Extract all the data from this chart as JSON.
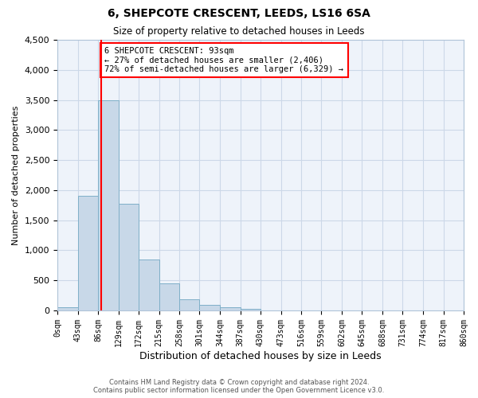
{
  "title": "6, SHEPCOTE CRESCENT, LEEDS, LS16 6SA",
  "subtitle": "Size of property relative to detached houses in Leeds",
  "xlabel": "Distribution of detached houses by size in Leeds",
  "ylabel": "Number of detached properties",
  "bar_color": "#c8d8e8",
  "bar_edgecolor": "#7fafc8",
  "bin_edges": [
    0,
    43,
    86,
    129,
    172,
    215,
    258,
    301,
    344,
    387,
    430,
    473,
    516,
    559,
    602,
    645,
    688,
    731,
    774,
    817,
    860
  ],
  "bar_heights": [
    50,
    1900,
    3500,
    1775,
    850,
    450,
    190,
    90,
    50,
    30,
    0,
    0,
    0,
    0,
    0,
    0,
    0,
    0,
    0,
    0
  ],
  "tick_labels": [
    "0sqm",
    "43sqm",
    "86sqm",
    "129sqm",
    "172sqm",
    "215sqm",
    "258sqm",
    "301sqm",
    "344sqm",
    "387sqm",
    "430sqm",
    "473sqm",
    "516sqm",
    "559sqm",
    "602sqm",
    "645sqm",
    "688sqm",
    "731sqm",
    "774sqm",
    "817sqm",
    "860sqm"
  ],
  "ylim": [
    0,
    4500
  ],
  "yticks": [
    0,
    500,
    1000,
    1500,
    2000,
    2500,
    3000,
    3500,
    4000,
    4500
  ],
  "vline_x": 93,
  "vline_color": "red",
  "annotation_title": "6 SHEPCOTE CRESCENT: 93sqm",
  "annotation_line1": "← 27% of detached houses are smaller (2,406)",
  "annotation_line2": "72% of semi-detached houses are larger (6,329) →",
  "annotation_box_color": "white",
  "annotation_box_edgecolor": "red",
  "grid_color": "#ccd8e8",
  "background_color": "#eef3fa",
  "footer_line1": "Contains HM Land Registry data © Crown copyright and database right 2024.",
  "footer_line2": "Contains public sector information licensed under the Open Government Licence v3.0."
}
